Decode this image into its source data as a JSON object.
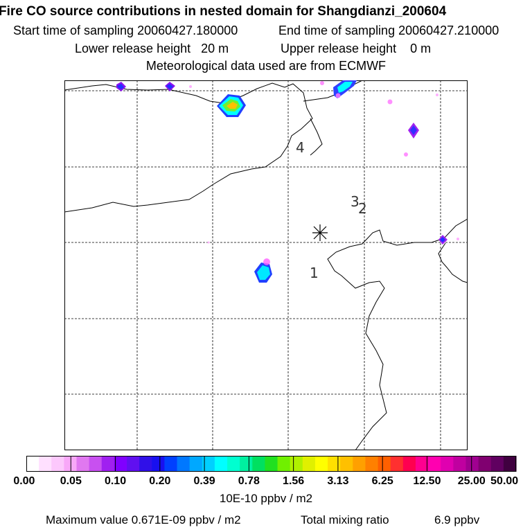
{
  "header": {
    "title": "Fire CO source contributions in nested domain for Shangdianzi_200604",
    "start_time": "Start time of sampling 20060427.180000",
    "end_time": "End time of sampling 20060427.210000",
    "lower_release": "Lower release height   20 m",
    "upper_release": "Upper release height    0 m",
    "met_source": "Meteorological data used are from ECMWF"
  },
  "map": {
    "station_marker": "*",
    "labels": [
      "4",
      "3",
      "2",
      "1"
    ]
  },
  "colorbar": {
    "tick_labels": [
      "0.00",
      "0.05",
      "0.10",
      "0.20",
      "0.39",
      "0.78",
      "1.56",
      "3.13",
      "6.25",
      "12.50",
      "25.00",
      "50.00"
    ],
    "unit_label": "10E-10 ppbv / m2",
    "colors": [
      "#ffffff",
      "#ffe0ff",
      "#fcc8fc",
      "#f8a8f8",
      "#e078f0",
      "#c850f0",
      "#a020f0",
      "#8000ff",
      "#6010f0",
      "#3010e8",
      "#1810f0",
      "#0040ff",
      "#0078ff",
      "#00a8ff",
      "#00d0ff",
      "#00ffff",
      "#00ffd0",
      "#00f0a0",
      "#00e060",
      "#20e020",
      "#70f000",
      "#b0f000",
      "#e0f000",
      "#ffff00",
      "#ffe000",
      "#ffc000",
      "#ffa000",
      "#ff8000",
      "#ff6000",
      "#ff3030",
      "#ff0050",
      "#ff0090",
      "#ff00b0",
      "#e000b0",
      "#c000a0",
      "#a00090",
      "#800070",
      "#600060",
      "#400040"
    ]
  },
  "footer": {
    "max_label": "Maximum value  0.671E-09 ppbv / m2",
    "total_label": "Total mixing ratio",
    "total_value": "6.9 ppbv"
  }
}
